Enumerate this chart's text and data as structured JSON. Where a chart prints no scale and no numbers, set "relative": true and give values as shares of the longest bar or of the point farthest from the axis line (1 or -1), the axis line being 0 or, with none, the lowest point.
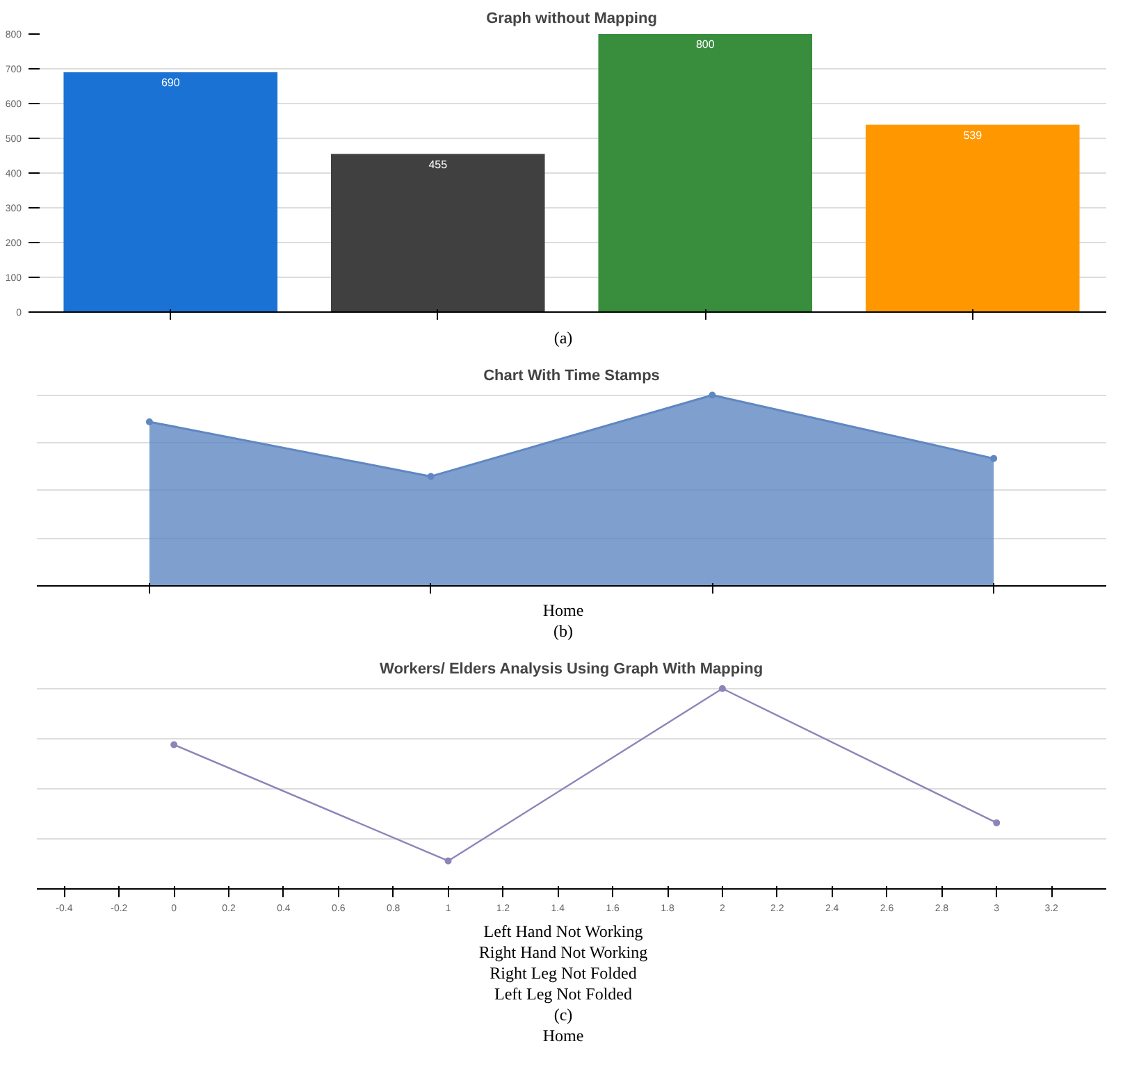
{
  "chart_data": [
    {
      "type": "bar",
      "title": "Graph without Mapping",
      "categories": [
        null,
        null,
        null,
        null
      ],
      "values": [
        690,
        455,
        800,
        539
      ],
      "colors": [
        "#1a73d4",
        "#404040",
        "#388e3c",
        "#ff9800"
      ],
      "ylim": [
        0,
        800
      ],
      "yticks": [
        0,
        100,
        200,
        300,
        400,
        500,
        600,
        700,
        800
      ],
      "grid": "y",
      "data_labels": true,
      "annotations": [
        "(a)"
      ]
    },
    {
      "type": "area",
      "title": "Chart With Time Stamps",
      "relative": true,
      "categories": [
        null,
        null,
        null,
        null
      ],
      "values": [
        0.86,
        0.574,
        1,
        0.668
      ],
      "color": "#5f87c2",
      "grid": "y",
      "marker": "circle",
      "annotations": [
        "Home",
        "(b)"
      ]
    },
    {
      "type": "line",
      "title": "Workers/ Elders Analysis Using Graph With Mapping",
      "relative": true,
      "x": [
        0,
        1,
        2,
        3
      ],
      "values": [
        0.72,
        0.14,
        1,
        0.33
      ],
      "color": "#8a86b8",
      "xlim": [
        -0.5,
        3.4
      ],
      "xticks": [
        -0.4,
        -0.2,
        0,
        0.2,
        0.4,
        0.6,
        0.8,
        1,
        1.2,
        1.4,
        1.6,
        1.8,
        2,
        2.2,
        2.4,
        2.6,
        2.8,
        3,
        3.2
      ],
      "grid": "y",
      "marker": "circle",
      "annotations": [
        "Left Hand Not Working",
        "Right Hand Not Working",
        "Right Leg Not Folded",
        "Left Leg Not Folded",
        "(c)",
        "Home"
      ]
    }
  ]
}
